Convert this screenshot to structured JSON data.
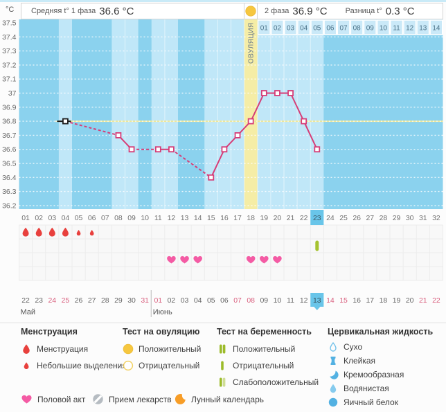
{
  "header": {
    "unit_label": "°C",
    "phase1_label": "Средняя t° 1 фаза",
    "phase1_value": "36.6 °C",
    "phase2_label": "2 фаза",
    "phase2_value": "36.9 °C",
    "diff_label": "Разница t°",
    "diff_value": "0.3 °C"
  },
  "chart_data": {
    "type": "line",
    "ylabel": "°C",
    "y_min": 36.2,
    "y_max": 37.5,
    "y_step": 0.1,
    "y_ticks": [
      "37.5",
      "37.4",
      "37.3",
      "37.2",
      "37.1",
      "37",
      "36.9",
      "36.8",
      "36.7",
      "36.6",
      "36.5",
      "36.4",
      "36.3",
      "36.2"
    ],
    "days_in_cycle": 32,
    "day_labels": [
      "01",
      "02",
      "03",
      "04",
      "05",
      "06",
      "07",
      "08",
      "09",
      "10",
      "11",
      "12",
      "13",
      "14",
      "15",
      "16",
      "17",
      "18",
      "19",
      "20",
      "21",
      "22",
      "23",
      "24",
      "25",
      "26",
      "27",
      "28",
      "29",
      "30",
      "31",
      "32"
    ],
    "points": [
      {
        "day": 4,
        "temp": 36.8,
        "variant": "black"
      },
      {
        "day": 8,
        "temp": 36.7
      },
      {
        "day": 9,
        "temp": 36.6
      },
      {
        "day": 11,
        "temp": 36.6
      },
      {
        "day": 12,
        "temp": 36.6
      },
      {
        "day": 15,
        "temp": 36.4
      },
      {
        "day": 16,
        "temp": 36.6
      },
      {
        "day": 17,
        "temp": 36.7
      },
      {
        "day": 18,
        "temp": 36.8
      },
      {
        "day": 19,
        "temp": 37.0
      },
      {
        "day": 20,
        "temp": 37.0
      },
      {
        "day": 21,
        "temp": 37.0
      },
      {
        "day": 22,
        "temp": 36.8
      },
      {
        "day": 23,
        "temp": 36.6
      }
    ],
    "coverline_temp": 36.8,
    "ovulation": {
      "day": 18,
      "label": "ОВУЛЯЦИЯ"
    },
    "selected_day": 23,
    "phase2_start_day": 19,
    "phase2_day_labels": [
      "01",
      "02",
      "03",
      "04",
      "05",
      "06",
      "07",
      "08",
      "09",
      "10",
      "11",
      "12",
      "13",
      "14"
    ],
    "events": {
      "menstruation_heavy_days": [
        1,
        2,
        3,
        4
      ],
      "menstruation_light_days": [
        5,
        6
      ],
      "pregnancy_test_negative_days": [
        23
      ],
      "intercourse_days": [
        12,
        13,
        14,
        18,
        19,
        20
      ]
    },
    "calendar": {
      "dates": [
        "22",
        "23",
        "24",
        "25",
        "26",
        "27",
        "28",
        "29",
        "30",
        "31",
        "01",
        "02",
        "03",
        "04",
        "05",
        "06",
        "07",
        "08",
        "09",
        "10",
        "11",
        "12",
        "13",
        "14",
        "15",
        "16",
        "17",
        "18",
        "19",
        "20",
        "21",
        "22"
      ],
      "weekend_days": [
        3,
        4,
        10,
        11,
        17,
        18,
        24,
        25,
        31,
        32
      ],
      "today_day": 23,
      "months": [
        {
          "label": "Май",
          "start_day": 1
        },
        {
          "label": "Июнь",
          "start_day": 11
        }
      ]
    }
  },
  "legend": {
    "columns": [
      {
        "title": "Менструация",
        "items": [
          {
            "icon": "menstruation-drop",
            "label": "Менструация"
          },
          {
            "icon": "spotting-drop",
            "label": "Небольшие выделения"
          }
        ]
      },
      {
        "title": "Тест на овуляцию",
        "items": [
          {
            "icon": "ovulation-test-positive",
            "label": "Положительный"
          },
          {
            "icon": "ovulation-test-negative",
            "label": "Отрицательный"
          }
        ]
      },
      {
        "title": "Тест на беременность",
        "items": [
          {
            "icon": "pregnancy-test-positive",
            "label": "Положительный"
          },
          {
            "icon": "pregnancy-test-negative",
            "label": "Отрицательный"
          },
          {
            "icon": "pregnancy-test-weak",
            "label": "Слабоположительный"
          }
        ]
      },
      {
        "title": "Цервикальная жидкость",
        "items": [
          {
            "icon": "fluid-dry",
            "label": "Сухо"
          },
          {
            "icon": "fluid-sticky",
            "label": "Клейкая"
          },
          {
            "icon": "fluid-creamy",
            "label": "Кремообразная"
          },
          {
            "icon": "fluid-watery",
            "label": "Водянистая"
          },
          {
            "icon": "fluid-eggwhite",
            "label": "Яичный белок"
          }
        ]
      }
    ],
    "bottom_items": [
      {
        "icon": "intercourse-heart",
        "label": "Половой акт"
      },
      {
        "icon": "medication-pill",
        "label": "Прием лекарств"
      },
      {
        "icon": "lunar-moon",
        "label": "Лунный календарь"
      }
    ]
  },
  "colors": {
    "chart_bg": "#8bd2ee",
    "measured_column": "#c0e7f8",
    "ovulation_column": "#f5eda6",
    "phase2_cell": "#cae9f8",
    "coverline": "#ebe79e",
    "series": "#d63d77",
    "outlier_black": "#1c1c1c",
    "selected_day_blue": "#69c5e9",
    "menstruation_red": "#e8403d",
    "intercourse_pink": "#f45ba4",
    "pregnancy_test_green": "#a5c22f",
    "weekend_red": "#d95f7e",
    "ovulation_test_gold": "#f6c73f",
    "cervical_blue": "#53b1e2",
    "moon_orange": "#f79d27",
    "pill_gray": "#b6bcc2"
  }
}
